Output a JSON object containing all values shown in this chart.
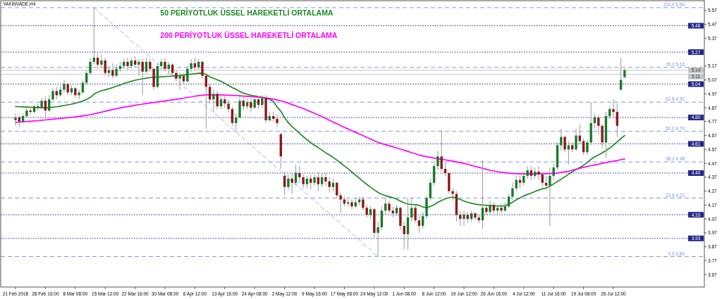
{
  "chart_data": {
    "type": "candlestick",
    "title": "YAKINVADE,H4",
    "categories": [
      "21 Feb 2018",
      null,
      null,
      null,
      null,
      null,
      null,
      null,
      "28 Feb 16:00",
      null,
      null,
      null,
      null,
      null,
      null,
      null,
      "8 Mar 08:00",
      null,
      null,
      null,
      null,
      null,
      null,
      null,
      "15 Mar 12:00",
      null,
      null,
      null,
      null,
      null,
      null,
      null,
      "22 Mar 16:00",
      null,
      null,
      null,
      null,
      null,
      null,
      null,
      "30 Mar 08:00",
      null,
      null,
      null,
      null,
      null,
      null,
      null,
      "6 Apr 12:00",
      null,
      null,
      null,
      null,
      null,
      null,
      null,
      "13 Apr 16:00",
      null,
      null,
      null,
      null,
      null,
      null,
      null,
      "24 Apr 08:00",
      null,
      null,
      null,
      null,
      null,
      null,
      null,
      "2 May 12:00",
      null,
      null,
      null,
      null,
      null,
      null,
      null,
      "9 May 16:00",
      null,
      null,
      null,
      null,
      null,
      null,
      null,
      "17 May 08:00",
      null,
      null,
      null,
      null,
      null,
      null,
      null,
      "24 May 12:00",
      null,
      null,
      null,
      null,
      null,
      null,
      null,
      "1 Jun 08:00",
      null,
      null,
      null,
      null,
      null,
      null,
      null,
      "8 Jun 12:00",
      null,
      null,
      null,
      null,
      null,
      null,
      null,
      "19 Jun 12:00",
      null,
      null,
      null,
      null,
      null,
      null,
      null,
      "26 Jun 16:00",
      null,
      null,
      null,
      null,
      null,
      null,
      null,
      "4 Jul 12:00",
      null,
      null,
      null,
      null,
      null,
      null,
      null,
      "11 Jul 16:00",
      null,
      null,
      null,
      null,
      null,
      null,
      null,
      "19 Jul 08:00",
      null,
      null,
      null,
      null,
      null,
      null,
      null,
      "26 Jul 12:00",
      null,
      null,
      null
    ],
    "ohlc": [
      [
        4.78,
        4.83,
        4.74,
        4.8
      ],
      [
        4.8,
        4.82,
        4.73,
        4.77
      ],
      [
        4.77,
        4.83,
        4.76,
        4.81
      ],
      [
        4.81,
        4.87,
        4.8,
        4.85
      ],
      [
        4.85,
        4.88,
        4.82,
        4.84
      ],
      [
        4.84,
        4.89,
        4.83,
        4.88
      ],
      [
        4.88,
        4.9,
        4.85,
        4.87
      ],
      [
        4.87,
        4.94,
        4.86,
        4.92
      ],
      [
        4.92,
        4.95,
        4.78,
        4.85
      ],
      [
        4.85,
        4.96,
        4.84,
        4.93
      ],
      [
        4.93,
        5.01,
        4.92,
        4.99
      ],
      [
        4.99,
        5.02,
        4.93,
        4.96
      ],
      [
        4.96,
        5.03,
        4.95,
        5.0
      ],
      [
        5.0,
        5.07,
        4.98,
        5.04
      ],
      [
        5.04,
        5.05,
        4.96,
        4.98
      ],
      [
        4.98,
        5.03,
        4.96,
        5.01
      ],
      [
        5.01,
        5.02,
        4.94,
        4.96
      ],
      [
        4.96,
        5.0,
        4.93,
        4.98
      ],
      [
        4.98,
        5.07,
        4.97,
        5.05
      ],
      [
        5.05,
        5.14,
        5.04,
        5.12
      ],
      [
        5.12,
        5.23,
        5.11,
        5.2
      ],
      [
        5.2,
        5.59,
        5.18,
        5.23
      ],
      [
        5.23,
        5.26,
        5.15,
        5.18
      ],
      [
        5.18,
        5.25,
        5.16,
        5.21
      ],
      [
        5.21,
        5.23,
        5.1,
        5.12
      ],
      [
        5.12,
        5.17,
        5.09,
        5.14
      ],
      [
        5.14,
        5.19,
        5.08,
        5.1
      ],
      [
        5.1,
        5.18,
        5.09,
        5.15
      ],
      [
        5.15,
        5.2,
        5.13,
        5.17
      ],
      [
        5.17,
        5.22,
        5.15,
        5.2
      ],
      [
        5.2,
        5.23,
        5.14,
        5.17
      ],
      [
        5.17,
        5.23,
        5.15,
        5.21
      ],
      [
        5.21,
        5.24,
        5.16,
        5.18
      ],
      [
        5.18,
        5.22,
        5.1,
        5.2
      ],
      [
        5.2,
        5.22,
        4.96,
        5.13
      ],
      [
        5.13,
        5.23,
        5.12,
        5.2
      ],
      [
        5.2,
        5.22,
        5.13,
        5.15
      ],
      [
        5.15,
        5.16,
        5.0,
        5.02
      ],
      [
        5.02,
        5.19,
        5.01,
        5.17
      ],
      [
        5.17,
        5.22,
        5.14,
        5.2
      ],
      [
        5.2,
        5.23,
        5.13,
        5.15
      ],
      [
        5.15,
        5.2,
        5.12,
        5.18
      ],
      [
        5.18,
        5.19,
        5.1,
        5.12
      ],
      [
        5.12,
        5.14,
        5.06,
        5.08
      ],
      [
        5.08,
        5.12,
        5.0,
        5.1
      ],
      [
        5.1,
        5.12,
        5.04,
        5.06
      ],
      [
        5.06,
        5.17,
        5.05,
        5.15
      ],
      [
        5.15,
        5.22,
        5.13,
        5.19
      ],
      [
        5.19,
        5.23,
        5.14,
        5.16
      ],
      [
        5.16,
        5.22,
        5.14,
        5.2
      ],
      [
        5.2,
        5.21,
        5.08,
        5.1
      ],
      [
        5.1,
        5.11,
        4.72,
        5.02
      ],
      [
        5.02,
        5.04,
        4.9,
        4.93
      ],
      [
        4.93,
        5.0,
        4.84,
        4.97
      ],
      [
        4.97,
        4.99,
        4.86,
        4.88
      ],
      [
        4.88,
        4.95,
        4.86,
        4.93
      ],
      [
        4.93,
        4.96,
        4.87,
        4.9
      ],
      [
        4.9,
        4.93,
        4.84,
        4.86
      ],
      [
        4.86,
        4.88,
        4.74,
        4.76
      ],
      [
        4.76,
        4.83,
        4.71,
        4.8
      ],
      [
        4.8,
        4.95,
        4.79,
        4.92
      ],
      [
        4.92,
        4.96,
        4.85,
        4.88
      ],
      [
        4.88,
        4.93,
        4.86,
        4.91
      ],
      [
        4.91,
        4.94,
        4.84,
        4.87
      ],
      [
        4.87,
        4.95,
        4.86,
        4.93
      ],
      [
        4.93,
        4.95,
        4.86,
        4.89
      ],
      [
        4.89,
        4.96,
        4.87,
        4.94
      ],
      [
        4.94,
        4.96,
        4.76,
        4.78
      ],
      [
        4.78,
        4.84,
        4.77,
        4.81
      ],
      [
        4.81,
        4.84,
        4.77,
        4.79
      ],
      [
        4.79,
        4.82,
        4.73,
        4.76
      ],
      [
        4.68,
        4.69,
        4.43,
        4.52
      ],
      [
        4.38,
        4.41,
        4.24,
        4.3
      ],
      [
        4.3,
        4.39,
        4.28,
        4.36
      ],
      [
        4.36,
        4.4,
        4.25,
        4.33
      ],
      [
        4.33,
        4.46,
        4.31,
        4.4
      ],
      [
        4.4,
        4.45,
        4.33,
        4.37
      ],
      [
        4.37,
        4.39,
        4.29,
        4.32
      ],
      [
        4.32,
        4.38,
        4.29,
        4.36
      ],
      [
        4.36,
        4.39,
        4.28,
        4.33
      ],
      [
        4.33,
        4.39,
        4.31,
        4.37
      ],
      [
        4.37,
        4.4,
        4.27,
        4.32
      ],
      [
        4.32,
        4.4,
        4.3,
        4.37
      ],
      [
        4.37,
        4.4,
        4.31,
        4.34
      ],
      [
        4.34,
        4.37,
        4.26,
        4.3
      ],
      [
        4.3,
        4.36,
        4.27,
        4.33
      ],
      [
        4.33,
        4.34,
        4.22,
        4.24
      ],
      [
        4.24,
        4.26,
        4.11,
        4.21
      ],
      [
        4.21,
        4.23,
        4.16,
        4.18
      ],
      [
        4.18,
        4.21,
        4.16,
        4.19
      ],
      [
        4.19,
        4.21,
        4.14,
        4.16
      ],
      [
        4.16,
        4.22,
        4.15,
        4.19
      ],
      [
        4.19,
        4.23,
        4.17,
        4.21
      ],
      [
        4.21,
        4.23,
        4.13,
        4.15
      ],
      [
        4.15,
        4.17,
        4.08,
        4.1
      ],
      [
        4.1,
        4.16,
        4.07,
        4.14
      ],
      [
        4.14,
        4.15,
        3.94,
        3.97
      ],
      [
        3.97,
        4.05,
        3.8,
        4.01
      ],
      [
        4.01,
        4.16,
        3.99,
        4.13
      ],
      [
        4.13,
        4.22,
        4.1,
        4.18
      ],
      [
        4.18,
        4.2,
        4.11,
        4.13
      ],
      [
        4.13,
        4.16,
        4.08,
        4.11
      ],
      [
        4.11,
        4.17,
        4.09,
        4.15
      ],
      [
        4.15,
        4.16,
        3.99,
        4.02
      ],
      [
        4.02,
        4.05,
        3.85,
        3.96
      ],
      [
        3.96,
        4.22,
        3.85,
        4.08
      ],
      [
        4.08,
        4.22,
        4.05,
        4.15
      ],
      [
        4.15,
        4.17,
        4.04,
        4.06
      ],
      [
        4.06,
        4.09,
        3.97,
        4.02
      ],
      [
        4.02,
        4.12,
        4.0,
        4.09
      ],
      [
        4.09,
        4.24,
        4.07,
        4.22
      ],
      [
        4.22,
        4.36,
        4.2,
        4.33
      ],
      [
        4.33,
        4.47,
        4.31,
        4.45
      ],
      [
        4.45,
        4.56,
        4.42,
        4.52
      ],
      [
        4.52,
        4.71,
        4.41,
        4.43
      ],
      [
        4.43,
        4.48,
        4.38,
        4.4
      ],
      [
        4.4,
        4.4,
        4.25,
        4.27
      ],
      [
        4.27,
        4.29,
        4.2,
        4.25
      ],
      [
        4.25,
        4.27,
        4.05,
        4.1
      ],
      [
        4.1,
        4.13,
        4.02,
        4.07
      ],
      [
        4.07,
        4.13,
        4.02,
        4.1
      ],
      [
        4.1,
        4.12,
        4.04,
        4.07
      ],
      [
        4.07,
        4.13,
        4.05,
        4.11
      ],
      [
        4.11,
        4.12,
        4.06,
        4.08
      ],
      [
        4.08,
        4.1,
        4.04,
        4.06
      ],
      [
        4.06,
        4.49,
        4.0,
        4.15
      ],
      [
        4.15,
        4.17,
        4.1,
        4.12
      ],
      [
        4.12,
        4.2,
        4.1,
        4.17
      ],
      [
        4.17,
        4.19,
        4.11,
        4.13
      ],
      [
        4.13,
        4.17,
        4.1,
        4.15
      ],
      [
        4.15,
        4.18,
        4.11,
        4.13
      ],
      [
        4.13,
        4.19,
        4.12,
        4.16
      ],
      [
        4.16,
        4.25,
        4.15,
        4.23
      ],
      [
        4.23,
        4.33,
        4.21,
        4.29
      ],
      [
        4.29,
        4.38,
        4.27,
        4.35
      ],
      [
        4.35,
        4.38,
        4.29,
        4.33
      ],
      [
        4.33,
        4.41,
        4.31,
        4.38
      ],
      [
        4.38,
        4.45,
        4.36,
        4.42
      ],
      [
        4.42,
        4.45,
        4.35,
        4.38
      ],
      [
        4.38,
        4.44,
        4.36,
        4.41
      ],
      [
        4.41,
        4.45,
        4.35,
        4.39
      ],
      [
        4.39,
        4.41,
        4.3,
        4.33
      ],
      [
        4.33,
        4.38,
        4.28,
        4.31
      ],
      [
        4.31,
        4.44,
        4.02,
        4.38
      ],
      [
        4.38,
        4.47,
        4.35,
        4.44
      ],
      [
        4.44,
        4.62,
        4.42,
        4.6
      ],
      [
        4.6,
        4.72,
        4.56,
        4.66
      ],
      [
        4.66,
        4.67,
        4.55,
        4.57
      ],
      [
        4.57,
        4.63,
        4.46,
        4.6
      ],
      [
        4.6,
        4.62,
        4.55,
        4.57
      ],
      [
        4.57,
        4.72,
        4.56,
        4.67
      ],
      [
        4.67,
        4.75,
        4.61,
        4.63
      ],
      [
        4.63,
        4.65,
        4.53,
        4.55
      ],
      [
        4.55,
        4.64,
        4.53,
        4.62
      ],
      [
        4.62,
        4.91,
        4.6,
        4.76
      ],
      [
        4.76,
        4.83,
        4.72,
        4.8
      ],
      [
        4.8,
        4.82,
        4.68,
        4.74
      ],
      [
        4.74,
        4.75,
        4.58,
        4.62
      ],
      [
        4.62,
        4.84,
        4.51,
        4.81
      ],
      [
        4.81,
        4.88,
        4.79,
        4.86
      ],
      [
        4.86,
        4.93,
        4.8,
        4.84
      ],
      [
        4.84,
        4.9,
        4.66,
        4.74
      ],
      [
        5.0,
        5.23,
        4.99,
        5.07
      ],
      [
        5.09,
        5.15,
        5.08,
        5.14
      ]
    ],
    "colors": [
      "#1a7a2a",
      "#8b1a1a",
      "#1a7a2a",
      "#1a7a2a",
      "#8b1a1a",
      "#1a7a2a",
      "#8b1a1a",
      "#1a7a2a",
      "#8b1a1a",
      "#1a7a2a",
      "#1a7a2a",
      "#8b1a1a",
      "#1a7a2a",
      "#1a7a2a",
      "#8b1a1a",
      "#1a7a2a",
      "#8b1a1a",
      "#1a7a2a",
      "#1a7a2a",
      "#1a7a2a",
      "#1a7a2a",
      "#1a7a2a",
      "#8b1a1a",
      "#1a7a2a",
      "#8b1a1a",
      "#1a7a2a",
      "#8b1a1a",
      "#1a7a2a",
      "#1a7a2a",
      "#1a7a2a",
      "#8b1a1a",
      "#1a7a2a",
      "#8b1a1a",
      "#1a7a2a",
      "#8b1a1a",
      "#1a7a2a",
      "#8b1a1a",
      "#8b1a1a",
      "#1a7a2a",
      "#1a7a2a",
      "#8b1a1a",
      "#1a7a2a",
      "#8b1a1a",
      "#8b1a1a",
      "#1a7a2a",
      "#8b1a1a",
      "#1a7a2a",
      "#1a7a2a",
      "#8b1a1a",
      "#1a7a2a",
      "#8b1a1a",
      "#8b1a1a",
      "#8b1a1a",
      "#1a7a2a",
      "#8b1a1a",
      "#1a7a2a",
      "#8b1a1a",
      "#8b1a1a",
      "#8b1a1a",
      "#1a7a2a",
      "#1a7a2a",
      "#8b1a1a",
      "#1a7a2a",
      "#8b1a1a",
      "#1a7a2a",
      "#8b1a1a",
      "#1a7a2a",
      "#8b1a1a",
      "#1a7a2a",
      "#8b1a1a",
      "#8b1a1a",
      "#8b1a1a",
      "#8b1a1a",
      "#1a7a2a",
      "#8b1a1a",
      "#1a7a2a",
      "#8b1a1a",
      "#8b1a1a",
      "#1a7a2a",
      "#8b1a1a",
      "#1a7a2a",
      "#8b1a1a",
      "#1a7a2a",
      "#8b1a1a",
      "#8b1a1a",
      "#1a7a2a",
      "#8b1a1a",
      "#8b1a1a",
      "#8b1a1a",
      "#1a7a2a",
      "#8b1a1a",
      "#1a7a2a",
      "#1a7a2a",
      "#8b1a1a",
      "#8b1a1a",
      "#1a7a2a",
      "#8b1a1a",
      "#1a7a2a",
      "#1a7a2a",
      "#1a7a2a",
      "#8b1a1a",
      "#8b1a1a",
      "#1a7a2a",
      "#8b1a1a",
      "#8b1a1a",
      "#1a7a2a",
      "#1a7a2a",
      "#8b1a1a",
      "#8b1a1a",
      "#1a7a2a",
      "#1a7a2a",
      "#1a7a2a",
      "#1a7a2a",
      "#1a7a2a",
      "#8b1a1a",
      "#8b1a1a",
      "#8b1a1a",
      "#8b1a1a",
      "#8b1a1a",
      "#8b1a1a",
      "#1a7a2a",
      "#8b1a1a",
      "#1a7a2a",
      "#8b1a1a",
      "#8b1a1a",
      "#1a7a2a",
      "#8b1a1a",
      "#1a7a2a",
      "#8b1a1a",
      "#1a7a2a",
      "#8b1a1a",
      "#1a7a2a",
      "#1a7a2a",
      "#1a7a2a",
      "#1a7a2a",
      "#8b1a1a",
      "#1a7a2a",
      "#1a7a2a",
      "#8b1a1a",
      "#1a7a2a",
      "#8b1a1a",
      "#8b1a1a",
      "#8b1a1a",
      "#1a7a2a",
      "#1a7a2a",
      "#1a7a2a",
      "#1a7a2a",
      "#8b1a1a",
      "#1a7a2a",
      "#8b1a1a",
      "#1a7a2a",
      "#8b1a1a",
      "#8b1a1a",
      "#1a7a2a",
      "#1a7a2a",
      "#1a7a2a",
      "#8b1a1a",
      "#8b1a1a",
      "#1a7a2a",
      "#1a7a2a",
      "#8b1a1a",
      "#8b1a1a",
      "#1a7a2a",
      "#1a7a2a"
    ],
    "series": [
      {
        "type": "line",
        "name": "50 PERİYOTLUK ÜSSEL HAREKETLİ ORTALAMA",
        "color": "#1f8a24",
        "values": [
          4.879,
          4.877,
          4.876,
          4.875,
          4.874,
          4.872,
          4.871,
          4.87,
          4.869,
          4.871,
          4.874,
          4.877,
          4.881,
          4.886,
          4.891,
          4.896,
          4.902,
          4.91,
          4.918,
          4.93,
          4.944,
          4.968,
          4.982,
          4.992,
          4.999,
          5.007,
          5.015,
          5.025,
          5.033,
          5.045,
          5.053,
          5.06,
          5.068,
          5.073,
          5.078,
          5.083,
          5.087,
          5.089,
          5.091,
          5.093,
          5.094,
          5.096,
          5.098,
          5.1,
          5.102,
          5.105,
          5.109,
          5.112,
          5.114,
          5.118,
          5.119,
          5.11,
          5.092,
          5.082,
          5.071,
          5.06,
          5.045,
          5.03,
          5.015,
          5.003,
          4.987,
          4.975,
          4.967,
          4.96,
          4.955,
          4.95,
          4.946,
          4.938,
          4.93,
          4.915,
          4.875,
          4.845,
          4.8,
          4.762,
          4.735,
          4.71,
          4.686,
          4.662,
          4.64,
          4.619,
          4.6,
          4.583,
          4.565,
          4.546,
          4.53,
          4.513,
          4.493,
          4.472,
          4.451,
          4.431,
          4.408,
          4.385,
          4.363,
          4.34,
          4.319,
          4.298,
          4.279,
          4.261,
          4.248,
          4.237,
          4.23,
          4.223,
          4.213,
          4.198,
          4.186,
          4.177,
          4.174,
          4.173,
          4.168,
          4.156,
          4.151,
          4.16,
          4.172,
          4.19,
          4.203,
          4.215,
          4.223,
          4.228,
          4.22,
          4.21,
          4.199,
          4.19,
          4.183,
          4.177,
          4.173,
          4.17,
          4.168,
          4.166,
          4.165,
          4.164,
          4.163,
          4.165,
          4.175,
          4.19,
          4.208,
          4.222,
          4.236,
          4.246,
          4.256,
          4.267,
          4.278,
          4.287,
          4.292,
          4.305,
          4.322,
          4.339,
          4.355,
          4.373,
          4.392,
          4.409,
          4.425,
          4.441,
          4.456,
          4.475,
          4.499,
          4.516,
          4.53,
          4.545,
          4.562,
          4.58,
          4.6,
          4.625,
          4.648,
          4.67
        ]
      },
      {
        "type": "line",
        "name": "200 PERİYOTLUK ÜSSEL HAREKETLİ ORTALAMA",
        "color": "#ff00ff",
        "values": [
          4.765,
          4.767,
          4.769,
          4.771,
          4.773,
          4.775,
          4.777,
          4.78,
          4.782,
          4.785,
          4.788,
          4.79,
          4.793,
          4.796,
          4.798,
          4.801,
          4.804,
          4.808,
          4.812,
          4.816,
          4.82,
          4.826,
          4.832,
          4.838,
          4.845,
          4.851,
          4.857,
          4.863,
          4.869,
          4.874,
          4.878,
          4.883,
          4.888,
          4.892,
          4.896,
          4.9,
          4.904,
          4.908,
          4.912,
          4.916,
          4.919,
          4.923,
          4.927,
          4.931,
          4.935,
          4.939,
          4.944,
          4.948,
          4.953,
          4.957,
          4.96,
          4.962,
          4.962,
          4.962,
          4.962,
          4.962,
          4.961,
          4.96,
          4.959,
          4.958,
          4.956,
          4.954,
          4.952,
          4.95,
          4.948,
          4.946,
          4.944,
          4.941,
          4.937,
          4.932,
          4.926,
          4.92,
          4.912,
          4.903,
          4.893,
          4.883,
          4.873,
          4.864,
          4.853,
          4.841,
          4.83,
          4.818,
          4.806,
          4.793,
          4.78,
          4.767,
          4.755,
          4.742,
          4.729,
          4.717,
          4.705,
          4.693,
          4.681,
          4.669,
          4.657,
          4.645,
          4.633,
          4.621,
          4.612,
          4.604,
          4.597,
          4.589,
          4.581,
          4.572,
          4.564,
          4.556,
          4.547,
          4.539,
          4.53,
          4.523,
          4.518,
          4.513,
          4.508,
          4.503,
          4.499,
          4.495,
          4.49,
          4.485,
          4.48,
          4.475,
          4.47,
          4.463,
          4.455,
          4.448,
          4.441,
          4.434,
          4.427,
          4.42,
          4.415,
          4.41,
          4.406,
          4.403,
          4.399,
          4.397,
          4.395,
          4.394,
          4.394,
          4.394,
          4.394,
          4.394,
          4.394,
          4.395,
          4.396,
          4.397,
          4.398,
          4.401,
          4.405,
          4.409,
          4.413,
          4.42,
          4.427,
          4.434,
          4.441,
          4.447,
          4.453,
          4.459,
          4.464,
          4.47,
          4.475,
          4.48,
          4.485,
          4.49,
          4.496,
          4.502
        ]
      },
      {
        "type": "line",
        "color": "#9db4ea",
        "line_style": "dashed",
        "values": [
          null,
          null,
          null,
          null,
          null,
          null,
          null,
          null,
          null,
          null,
          null,
          null,
          null,
          null,
          null,
          null,
          null,
          null,
          null,
          null,
          null,
          5.59,
          5.57,
          5.54,
          5.52,
          5.5,
          5.47,
          5.45,
          5.43,
          5.4,
          5.38,
          5.35,
          5.33,
          5.31,
          5.28,
          5.26,
          5.24,
          5.21,
          5.19,
          5.17,
          5.14,
          5.12,
          5.1,
          5.07,
          5.05,
          5.02,
          5.0,
          4.98,
          4.95,
          4.93,
          4.91,
          4.88,
          4.86,
          4.84,
          4.81,
          4.79,
          4.77,
          4.74,
          4.72,
          4.7,
          4.67,
          4.65,
          4.62,
          4.6,
          4.58,
          4.55,
          4.53,
          4.51,
          4.48,
          4.46,
          4.44,
          4.41,
          4.39,
          4.37,
          4.34,
          4.32,
          4.3,
          4.27,
          4.25,
          4.22,
          4.2,
          4.18,
          4.15,
          4.13,
          4.11,
          4.08,
          4.06,
          4.04,
          4.01,
          3.99,
          3.97,
          3.94,
          3.92,
          3.89,
          3.87,
          3.85,
          3.82,
          3.8,
          null,
          null,
          null,
          null,
          null,
          null,
          null,
          null,
          null,
          null,
          null,
          null,
          null,
          null,
          null,
          null,
          null,
          null,
          null,
          null,
          null,
          null,
          null,
          null,
          null,
          null,
          null,
          null,
          null,
          null,
          null,
          null,
          null,
          null,
          null,
          null,
          null,
          null,
          null,
          null,
          null,
          null,
          null,
          null,
          null,
          null,
          null,
          null,
          null,
          null,
          null,
          null,
          null,
          null,
          null,
          null,
          null,
          null,
          null,
          null,
          null,
          null,
          null,
          null,
          null,
          null
        ]
      }
    ],
    "ref_lines": [
      {
        "axis": "y",
        "value": 5.59,
        "label": "100.0 5.59",
        "color": "#7d98e6",
        "line_style": "dashed"
      },
      {
        "axis": "y",
        "value": 5.16,
        "label": "76.2 5.16",
        "color": "#7d98e6",
        "line_style": "dashed"
      },
      {
        "axis": "y",
        "value": 4.91,
        "label": "61.8 4.91",
        "color": "#7d98e6",
        "line_style": "dashed"
      },
      {
        "axis": "y",
        "value": 4.7,
        "label": "50.0 4.70",
        "color": "#7d98e6",
        "line_style": "dashed"
      },
      {
        "axis": "y",
        "value": 4.48,
        "label": "38.2 4.48",
        "color": "#7d98e6",
        "line_style": "dashed"
      },
      {
        "axis": "y",
        "value": 4.22,
        "label": "23.6 4.22",
        "color": "#7d98e6",
        "line_style": "dashed"
      },
      {
        "axis": "y",
        "value": 3.8,
        "label": "0.0 3.80",
        "color": "#7d98e6",
        "line_style": "dashed"
      },
      {
        "axis": "y",
        "value": 5.46,
        "label": "5.46",
        "color": "#26268a",
        "line_style": "dotted"
      },
      {
        "axis": "y",
        "value": 5.27,
        "label": "5.27",
        "color": "#26268a",
        "line_style": "dotted"
      },
      {
        "axis": "y",
        "value": 5.04,
        "label": "5.04",
        "color": "#26268a",
        "line_style": "dotted"
      },
      {
        "axis": "y",
        "value": 4.8,
        "label": "4.80",
        "color": "#26268a",
        "line_style": "dotted"
      },
      {
        "axis": "y",
        "value": 4.61,
        "label": "4.61",
        "color": "#26268a",
        "line_style": "dotted"
      },
      {
        "axis": "y",
        "value": 4.4,
        "label": "4.40",
        "color": "#26268a",
        "line_style": "dotted"
      },
      {
        "axis": "y",
        "value": 4.1,
        "label": "4.10",
        "color": "#26268a",
        "line_style": "dotted"
      },
      {
        "axis": "y",
        "value": 3.93,
        "label": "3.93",
        "color": "#26268a",
        "line_style": "dotted"
      },
      {
        "axis": "y",
        "value": 5.14,
        "label": "5.14",
        "color": "#c4c4c4",
        "line_style": "solid"
      },
      {
        "axis": "y",
        "value": 5.11,
        "label": "5.11",
        "color": "#c4c4c4",
        "line_style": "solid"
      }
    ],
    "ylim": [
      3.58,
      5.64
    ],
    "yticks": [
      5.57,
      5.47,
      5.37,
      5.17,
      5.07,
      4.97,
      4.87,
      4.77,
      4.67,
      4.57,
      4.47,
      4.37,
      4.27,
      4.17,
      4.07,
      3.97,
      3.87,
      3.77,
      3.67
    ],
    "legend": "top"
  }
}
